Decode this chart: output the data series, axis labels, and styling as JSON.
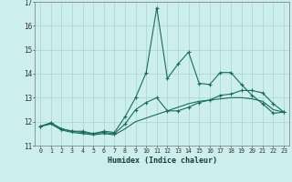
{
  "title": "",
  "xlabel": "Humidex (Indice chaleur)",
  "bg_color": "#cceeed",
  "grid_color": "#aad8d4",
  "line_color": "#1a6b5e",
  "xlim": [
    -0.5,
    23.5
  ],
  "ylim": [
    11,
    17
  ],
  "yticks": [
    11,
    12,
    13,
    14,
    15,
    16,
    17
  ],
  "xticks": [
    0,
    1,
    2,
    3,
    4,
    5,
    6,
    7,
    8,
    9,
    10,
    11,
    12,
    13,
    14,
    15,
    16,
    17,
    18,
    19,
    20,
    21,
    22,
    23
  ],
  "x": [
    0,
    1,
    2,
    3,
    4,
    5,
    6,
    7,
    8,
    9,
    10,
    11,
    12,
    13,
    14,
    15,
    16,
    17,
    18,
    19,
    20,
    21,
    22,
    23
  ],
  "line1": [
    11.8,
    11.95,
    11.7,
    11.6,
    11.6,
    11.5,
    11.6,
    11.55,
    12.2,
    13.0,
    14.05,
    16.75,
    13.8,
    14.4,
    14.9,
    13.6,
    13.55,
    14.05,
    14.05,
    13.55,
    13.1,
    12.75,
    12.35,
    12.4
  ],
  "line2": [
    11.8,
    11.95,
    11.7,
    11.6,
    11.55,
    11.5,
    11.55,
    11.5,
    11.9,
    12.5,
    12.8,
    13.0,
    12.45,
    12.45,
    12.6,
    12.8,
    12.9,
    13.1,
    13.15,
    13.3,
    13.3,
    13.2,
    12.75,
    12.4
  ],
  "line3": [
    11.8,
    11.9,
    11.65,
    11.55,
    11.5,
    11.45,
    11.5,
    11.45,
    11.7,
    12.0,
    12.15,
    12.3,
    12.45,
    12.6,
    12.75,
    12.85,
    12.9,
    12.95,
    13.0,
    13.0,
    12.95,
    12.85,
    12.5,
    12.4
  ]
}
